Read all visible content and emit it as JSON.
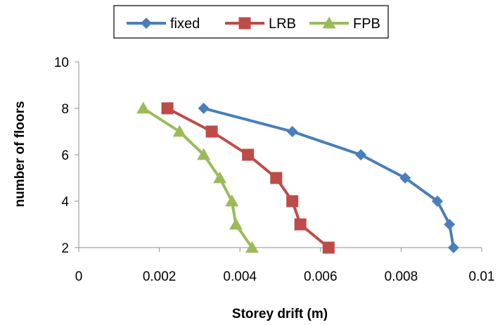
{
  "chart_data": {
    "type": "line",
    "title": "",
    "xlabel": "Storey drift (m)",
    "ylabel": "number of floors",
    "xlim": [
      0,
      0.01
    ],
    "ylim": [
      2,
      10
    ],
    "x_ticks": [
      "0",
      "0.002",
      "0.004",
      "0.006",
      "0.008",
      "0.01"
    ],
    "x_tick_values": [
      0,
      0.002,
      0.004,
      0.006,
      0.008,
      0.01
    ],
    "y_ticks": [
      "2",
      "4",
      "6",
      "8",
      "10"
    ],
    "y_tick_values": [
      2,
      4,
      6,
      8,
      10
    ],
    "grid": false,
    "legend_position": "top",
    "series": [
      {
        "name": "fixed",
        "color": "#4A7EBB",
        "marker": "diamond",
        "points": [
          {
            "x": 0.0093,
            "y": 2
          },
          {
            "x": 0.0092,
            "y": 3
          },
          {
            "x": 0.0089,
            "y": 4
          },
          {
            "x": 0.0081,
            "y": 5
          },
          {
            "x": 0.007,
            "y": 6
          },
          {
            "x": 0.0053,
            "y": 7
          },
          {
            "x": 0.0031,
            "y": 8
          }
        ]
      },
      {
        "name": "LRB",
        "color": "#BE4B48",
        "marker": "square",
        "points": [
          {
            "x": 0.0062,
            "y": 2
          },
          {
            "x": 0.0055,
            "y": 3
          },
          {
            "x": 0.0053,
            "y": 4
          },
          {
            "x": 0.0049,
            "y": 5
          },
          {
            "x": 0.0042,
            "y": 6
          },
          {
            "x": 0.0033,
            "y": 7
          },
          {
            "x": 0.0022,
            "y": 8
          }
        ]
      },
      {
        "name": "FPB",
        "color": "#9BBB59",
        "marker": "triangle",
        "points": [
          {
            "x": 0.0043,
            "y": 2
          },
          {
            "x": 0.0039,
            "y": 3
          },
          {
            "x": 0.0038,
            "y": 4
          },
          {
            "x": 0.0035,
            "y": 5
          },
          {
            "x": 0.0031,
            "y": 6
          },
          {
            "x": 0.0025,
            "y": 7
          },
          {
            "x": 0.0016,
            "y": 8
          }
        ]
      }
    ]
  }
}
